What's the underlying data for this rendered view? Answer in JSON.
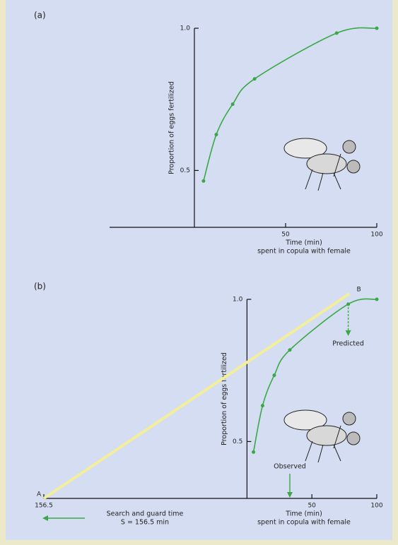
{
  "chart_data": [
    {
      "type": "line",
      "panel_label": "(a)",
      "ylabel": "Proportion of eggs fertilized",
      "xlabel": [
        "Time (min)",
        "spent in copula with female"
      ],
      "x": [
        5,
        12,
        21,
        33,
        78,
        100
      ],
      "values": [
        0.463,
        0.626,
        0.733,
        0.822,
        0.983,
        1.0
      ],
      "color": "#3aa845",
      "xlim": [
        -46.5,
        100
      ],
      "xticks": [
        50,
        100
      ],
      "ylim": [
        0.3,
        1.0
      ],
      "yticks": [
        {
          "value": 1.0,
          "label": "1.0"
        },
        {
          "value": 0.5,
          "label": "0.5"
        }
      ]
    },
    {
      "type": "line",
      "panel_label": "(b)",
      "ylabel": "Proportion of eggs fertilized",
      "xlabel": [
        "Time (min)",
        "spent in copula with female"
      ],
      "x": [
        5,
        12,
        21,
        33,
        78,
        100
      ],
      "values": [
        0.463,
        0.626,
        0.733,
        0.822,
        0.983,
        1.0
      ],
      "color": "#3aa845",
      "xlim": [
        -156.5,
        100
      ],
      "xticks": [
        {
          "value": -156.5,
          "label": "156.5"
        },
        50,
        100
      ],
      "ylim": [
        0.3,
        1.0
      ],
      "yticks": [
        {
          "value": 1.0,
          "label": "1.0"
        },
        {
          "value": 0.5,
          "label": "0.5"
        }
      ],
      "tangent": {
        "color": "#f2ee9c",
        "x": [
          -156.5,
          79
        ],
        "y": [
          0.3,
          1.02
        ],
        "labels": [
          "A",
          "B"
        ]
      },
      "predicted_label": "Predicted",
      "observed_label": "Observed",
      "search_label": [
        "Search and guard time",
        "S = 156.5 min"
      ]
    }
  ]
}
